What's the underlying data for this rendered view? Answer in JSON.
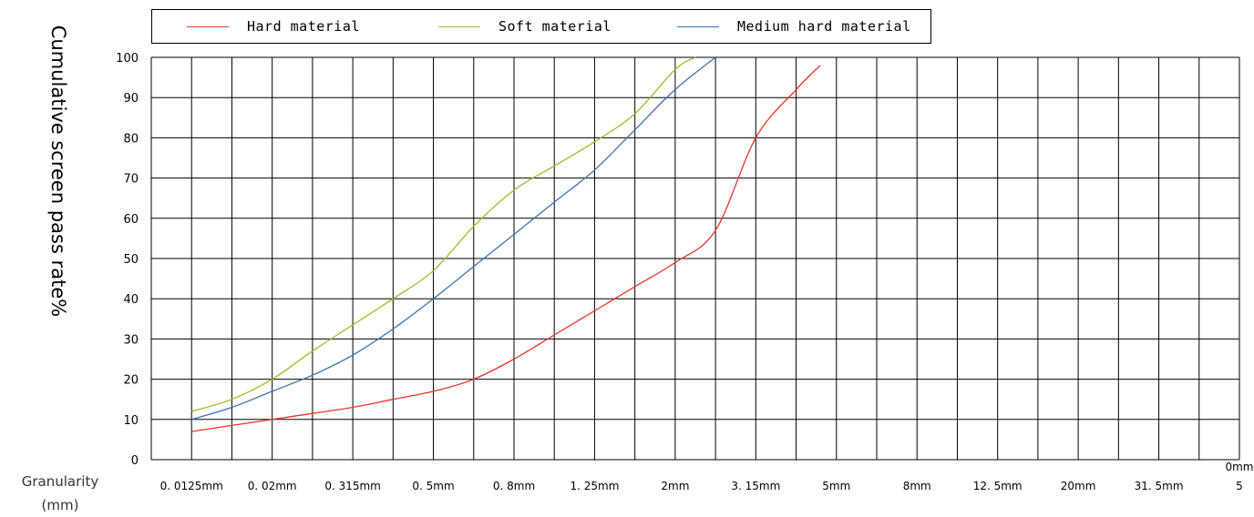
{
  "chart_data": {
    "type": "line",
    "title": "",
    "xlabel": "Granularity",
    "xlabel_unit": "(mm)",
    "ylabel": "Cumulative screen pass rate%",
    "ylim": [
      0,
      100
    ],
    "yticks": [
      "0",
      "10",
      "20",
      "30",
      "40",
      "50",
      "60",
      "70",
      "80",
      "90",
      "100"
    ],
    "categories": [
      "0.0125mm",
      "0.02mm",
      "0.315mm",
      "0.5mm",
      "0.8mm",
      "1.25mm",
      "2mm",
      "3.15mm",
      "5mm",
      "8mm",
      "12.5mm",
      "20mm",
      "31.5mm",
      "50mm"
    ],
    "xtick_labels": [
      "0. 0125mm",
      "0. 02mm",
      "0. 315mm",
      "0. 5mm",
      "0. 8mm",
      "1. 25mm",
      "2mm",
      "3. 15mm",
      "5mm",
      "8mm",
      "12. 5mm",
      "20mm",
      "31. 5mm",
      "5"
    ],
    "xtick_overflow": "0mm",
    "grid": true,
    "legend_position": "top",
    "series": [
      {
        "name": "Hard material",
        "color": "#e8332a",
        "points": [
          [
            0,
            7
          ],
          [
            0.5,
            8.5
          ],
          [
            1,
            10
          ],
          [
            1.5,
            11.5
          ],
          [
            2,
            13
          ],
          [
            2.5,
            15
          ],
          [
            3,
            17
          ],
          [
            3.5,
            20
          ],
          [
            4,
            25
          ],
          [
            4.5,
            31
          ],
          [
            5,
            37
          ],
          [
            5.5,
            43
          ],
          [
            6,
            49
          ],
          [
            6.5,
            57
          ],
          [
            7,
            80
          ],
          [
            7.5,
            92
          ],
          [
            7.8,
            98
          ]
        ]
      },
      {
        "name": "Soft material",
        "color": "#a8b828",
        "points": [
          [
            0,
            12
          ],
          [
            0.5,
            15
          ],
          [
            1,
            20
          ],
          [
            1.5,
            27
          ],
          [
            2,
            33.5
          ],
          [
            2.5,
            40
          ],
          [
            3,
            47
          ],
          [
            3.5,
            58
          ],
          [
            4,
            67
          ],
          [
            4.5,
            73
          ],
          [
            5,
            79
          ],
          [
            5.5,
            86
          ],
          [
            6,
            97
          ],
          [
            6.25,
            100
          ]
        ]
      },
      {
        "name": "Medium hard material",
        "color": "#3a72b0",
        "points": [
          [
            0,
            10
          ],
          [
            0.5,
            13
          ],
          [
            1,
            17
          ],
          [
            1.5,
            21
          ],
          [
            2,
            26
          ],
          [
            2.5,
            32.5
          ],
          [
            3,
            40
          ],
          [
            3.5,
            48
          ],
          [
            4,
            56
          ],
          [
            4.5,
            64
          ],
          [
            5,
            72
          ],
          [
            5.5,
            82
          ],
          [
            6,
            92
          ],
          [
            6.5,
            100
          ]
        ]
      }
    ]
  }
}
